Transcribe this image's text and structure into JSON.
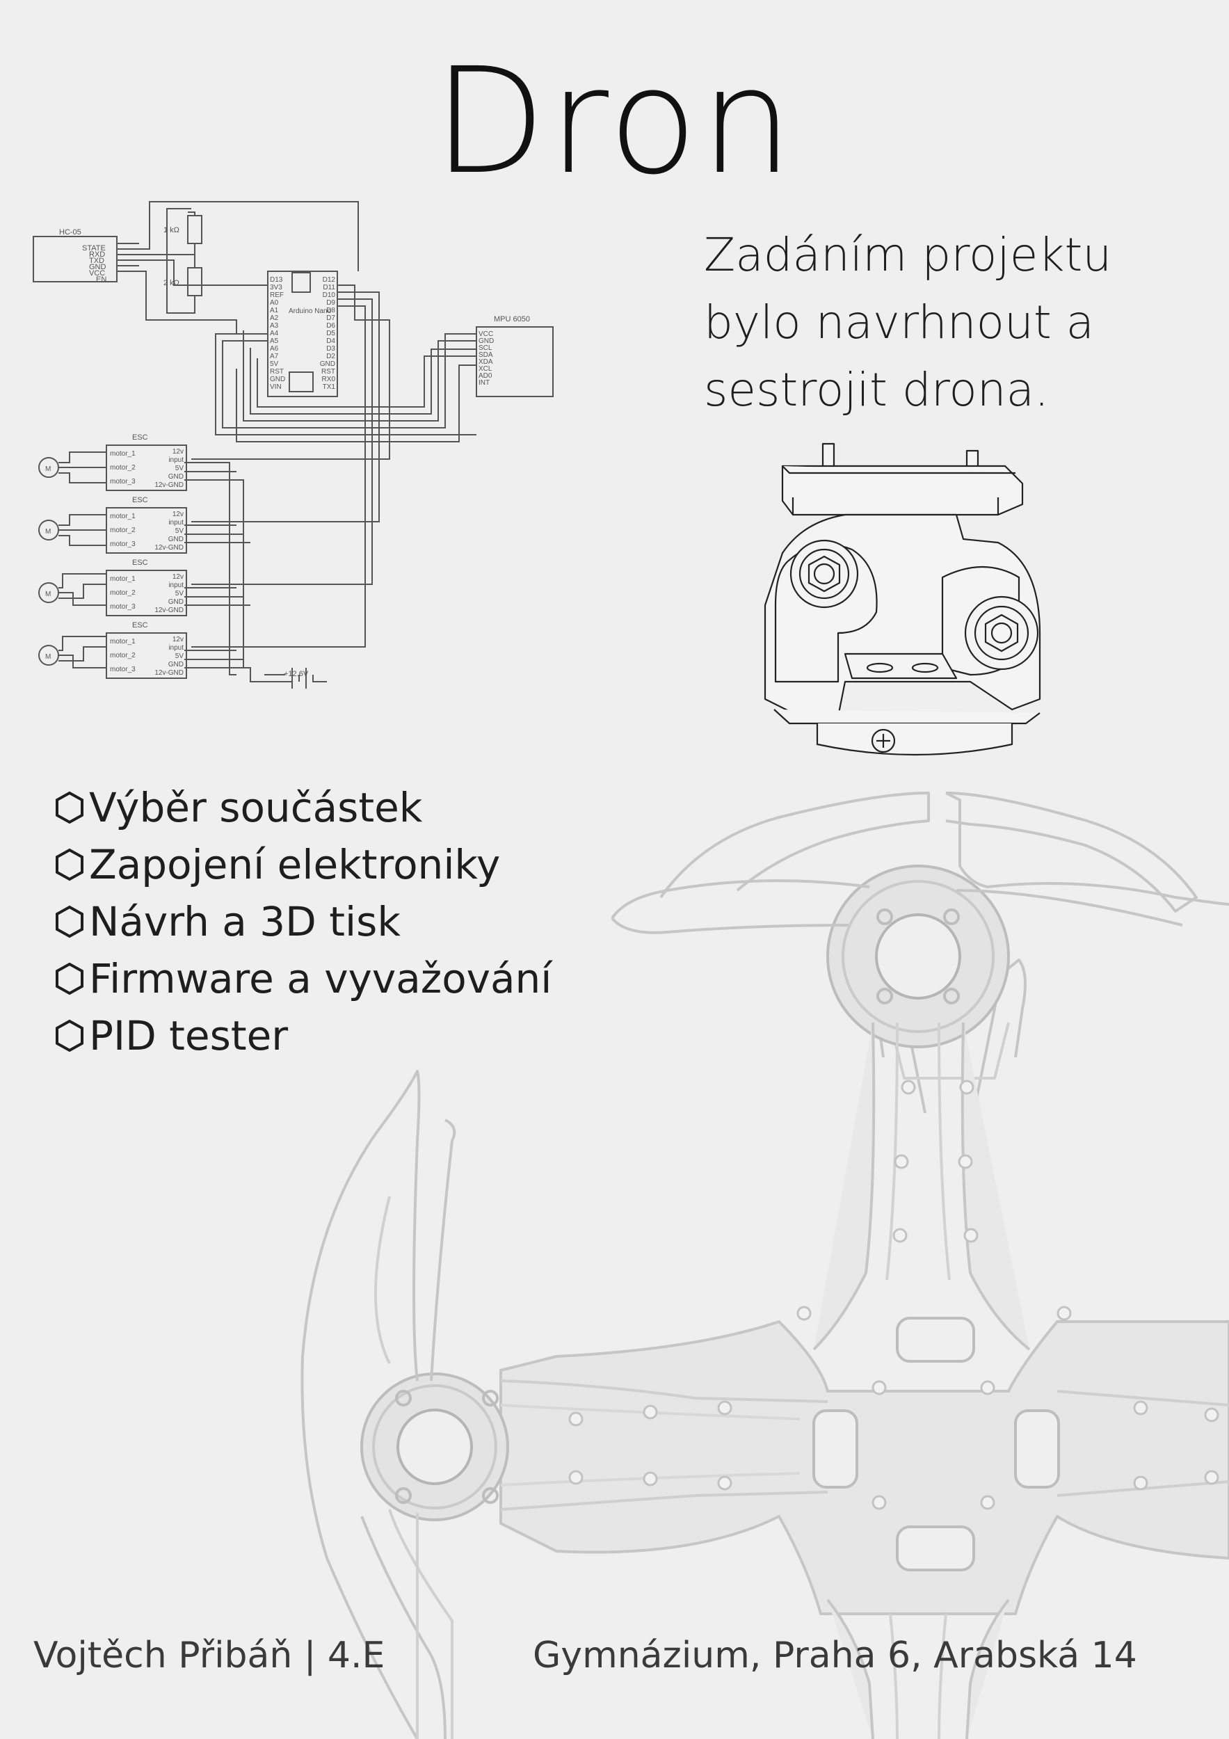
{
  "title": "Dron",
  "intro": "Zadáním projektu bylo navrhnout a sestrojit drona.",
  "tasks": [
    "Výběr součástek",
    "Zapojení elektroniky",
    "Návrh a 3D tisk",
    "Firmware a vyvažování",
    "PID tester"
  ],
  "footer": {
    "author": "Vojtěch Přibáň | 4.E",
    "school": "Gymnázium, Praha 6, Arabská 14"
  },
  "schematic": {
    "bt_module": "HC-05",
    "bt_pins": [
      "STATE",
      "RXD",
      "TXD",
      "GND",
      "VCC",
      "EN"
    ],
    "r1": "1 kΩ",
    "r2": "2 kΩ",
    "mcu": "Arduino Nano",
    "mcu_left_pins": [
      "D13",
      "3V3",
      "REF",
      "A0",
      "A1",
      "A2",
      "A3",
      "A4",
      "A5",
      "A6",
      "A7",
      "5V",
      "RST",
      "GND",
      "VIN"
    ],
    "mcu_right_pins": [
      "D12",
      "D11",
      "D10",
      "D9",
      "D8",
      "D7",
      "D6",
      "D5",
      "D4",
      "D3",
      "D2",
      "GND",
      "RST",
      "RX0",
      "TX1"
    ],
    "imu": "MPU 6050",
    "imu_pins": [
      "VCC",
      "GND",
      "SCL",
      "SDA",
      "XDA",
      "XCL",
      "AD0",
      "INT"
    ],
    "esc_label": "ESC",
    "esc_left_pins": [
      "motor_1",
      "motor_2",
      "motor_3"
    ],
    "esc_right_pins": [
      "12v",
      "input",
      "5V",
      "GND",
      "12v-GND"
    ],
    "motor_symbol": "M",
    "battery": "+12.6V"
  },
  "colors": {
    "background": "#efefef",
    "text": "#1a1a1a",
    "line": "#555555",
    "frame": "#c8c8c8"
  }
}
